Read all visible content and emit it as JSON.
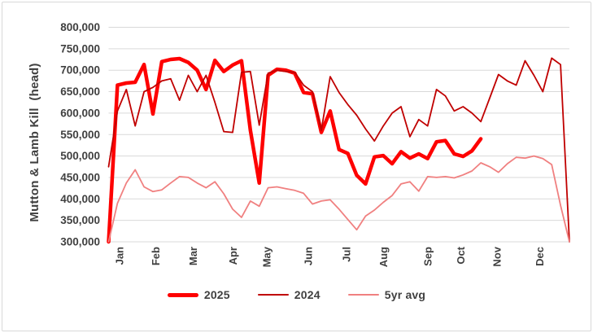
{
  "figure": {
    "background": "#ffffff",
    "border_color": "#d9d9d9",
    "text_color": "#404040",
    "gridline_color": "#d9d9d9"
  },
  "chart_data": {
    "type": "line",
    "title": "",
    "xlabel": "",
    "ylabel": "Mutton & Lamb Kill  (head)",
    "ylim": [
      300000,
      800000
    ],
    "y_tick_values": [
      800000,
      750000,
      700000,
      650000,
      600000,
      550000,
      500000,
      450000,
      400000,
      350000,
      300000
    ],
    "y_tick_labels": [
      "800,000",
      "750,000",
      "700,000",
      "650,000",
      "600,000",
      "550,000",
      "500,000",
      "450,000",
      "400,000",
      "350,000",
      "300,000"
    ],
    "x_tick_labels": [
      "Jan",
      "Feb",
      "Mar",
      "Apr",
      "May",
      "Jun",
      "Jul",
      "Aug",
      "Sep",
      "Oct",
      "Nov",
      "Dec"
    ],
    "x_tick_week_positions": [
      1.2,
      5.3,
      9.5,
      14.0,
      17.8,
      22.5,
      26.8,
      31.0,
      36.0,
      39.7,
      43.8,
      48.6
    ],
    "weeks": 53,
    "grid": "horizontal",
    "legend_position": "bottom",
    "series": [
      {
        "name": "2025",
        "color": "#fe0000",
        "width": 4.5,
        "values": [
          300000,
          665000,
          670000,
          672000,
          713000,
          598000,
          720000,
          725000,
          727000,
          718000,
          700000,
          655000,
          723000,
          697000,
          712000,
          722000,
          560000,
          437000,
          688000,
          702000,
          700000,
          693000,
          648000,
          645000,
          555000,
          605000,
          515000,
          506000,
          455000,
          435000,
          498000,
          501000,
          482000,
          510000,
          495000,
          505000,
          494000,
          533000,
          536000,
          505000,
          499000,
          512000,
          540000,
          null,
          null,
          null,
          null,
          null,
          null,
          null,
          null,
          null,
          null
        ]
      },
      {
        "name": "2024",
        "color": "#c00000",
        "width": 1.8,
        "values": [
          475000,
          605000,
          655000,
          570000,
          650000,
          660000,
          675000,
          680000,
          630000,
          688000,
          650000,
          688000,
          625000,
          557000,
          555000,
          695000,
          697000,
          572000,
          693000,
          700000,
          697000,
          695000,
          665000,
          650000,
          560000,
          685000,
          648000,
          620000,
          595000,
          563000,
          535000,
          570000,
          600000,
          615000,
          545000,
          585000,
          570000,
          655000,
          640000,
          605000,
          615000,
          600000,
          580000,
          635000,
          690000,
          675000,
          665000,
          722000,
          688000,
          650000,
          728000,
          713000,
          300000
        ]
      },
      {
        "name": "5yr avg",
        "color": "#f08080",
        "width": 1.8,
        "values": [
          300000,
          390000,
          437000,
          468000,
          428000,
          417000,
          421000,
          437000,
          452000,
          450000,
          437000,
          426000,
          440000,
          412000,
          376000,
          357000,
          395000,
          383000,
          426000,
          428000,
          424000,
          420000,
          413000,
          388000,
          395000,
          398000,
          376000,
          352000,
          328000,
          360000,
          374000,
          392000,
          408000,
          435000,
          440000,
          418000,
          452000,
          450000,
          452000,
          449000,
          456000,
          465000,
          484000,
          475000,
          462000,
          482000,
          497000,
          495000,
          500000,
          494000,
          480000,
          385000,
          300000
        ]
      }
    ]
  }
}
